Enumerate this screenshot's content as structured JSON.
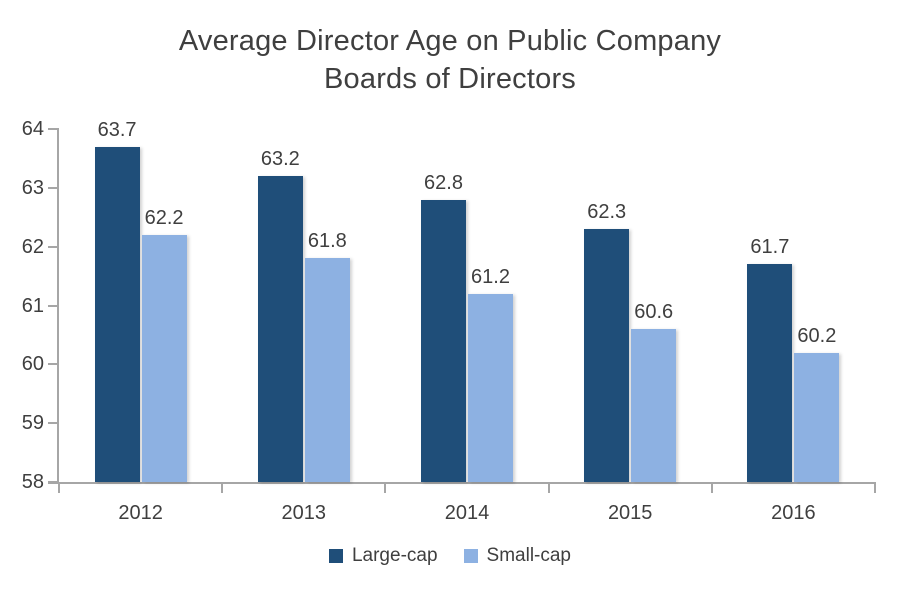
{
  "title": "Average Director Age on Public Company\nBoards of Directors",
  "chart_data": {
    "type": "bar",
    "title": "Average Director Age on Public Company Boards of Directors",
    "categories": [
      "2012",
      "2013",
      "2014",
      "2015",
      "2016"
    ],
    "series": [
      {
        "name": "Large-cap",
        "color": "#1F4E79",
        "values": [
          63.7,
          63.2,
          62.8,
          62.3,
          61.7
        ]
      },
      {
        "name": "Small-cap",
        "color": "#8DB1E2",
        "values": [
          62.2,
          61.8,
          61.2,
          60.6,
          60.2
        ]
      }
    ],
    "data_labels": [
      [
        "63.7",
        "63.2",
        "62.8",
        "62.3",
        "61.7"
      ],
      [
        "62.2",
        "61.8",
        "61.2",
        "60.6",
        "60.2"
      ]
    ],
    "xlabel": "",
    "ylabel": "",
    "ylim": [
      58,
      64
    ],
    "yticks": [
      "58",
      "59",
      "60",
      "61",
      "62",
      "63",
      "64"
    ],
    "grid": false,
    "legend_position": "bottom"
  },
  "colors": {
    "axis": "#a6a6a6",
    "text": "#3f3f3f",
    "background": "#ffffff"
  }
}
